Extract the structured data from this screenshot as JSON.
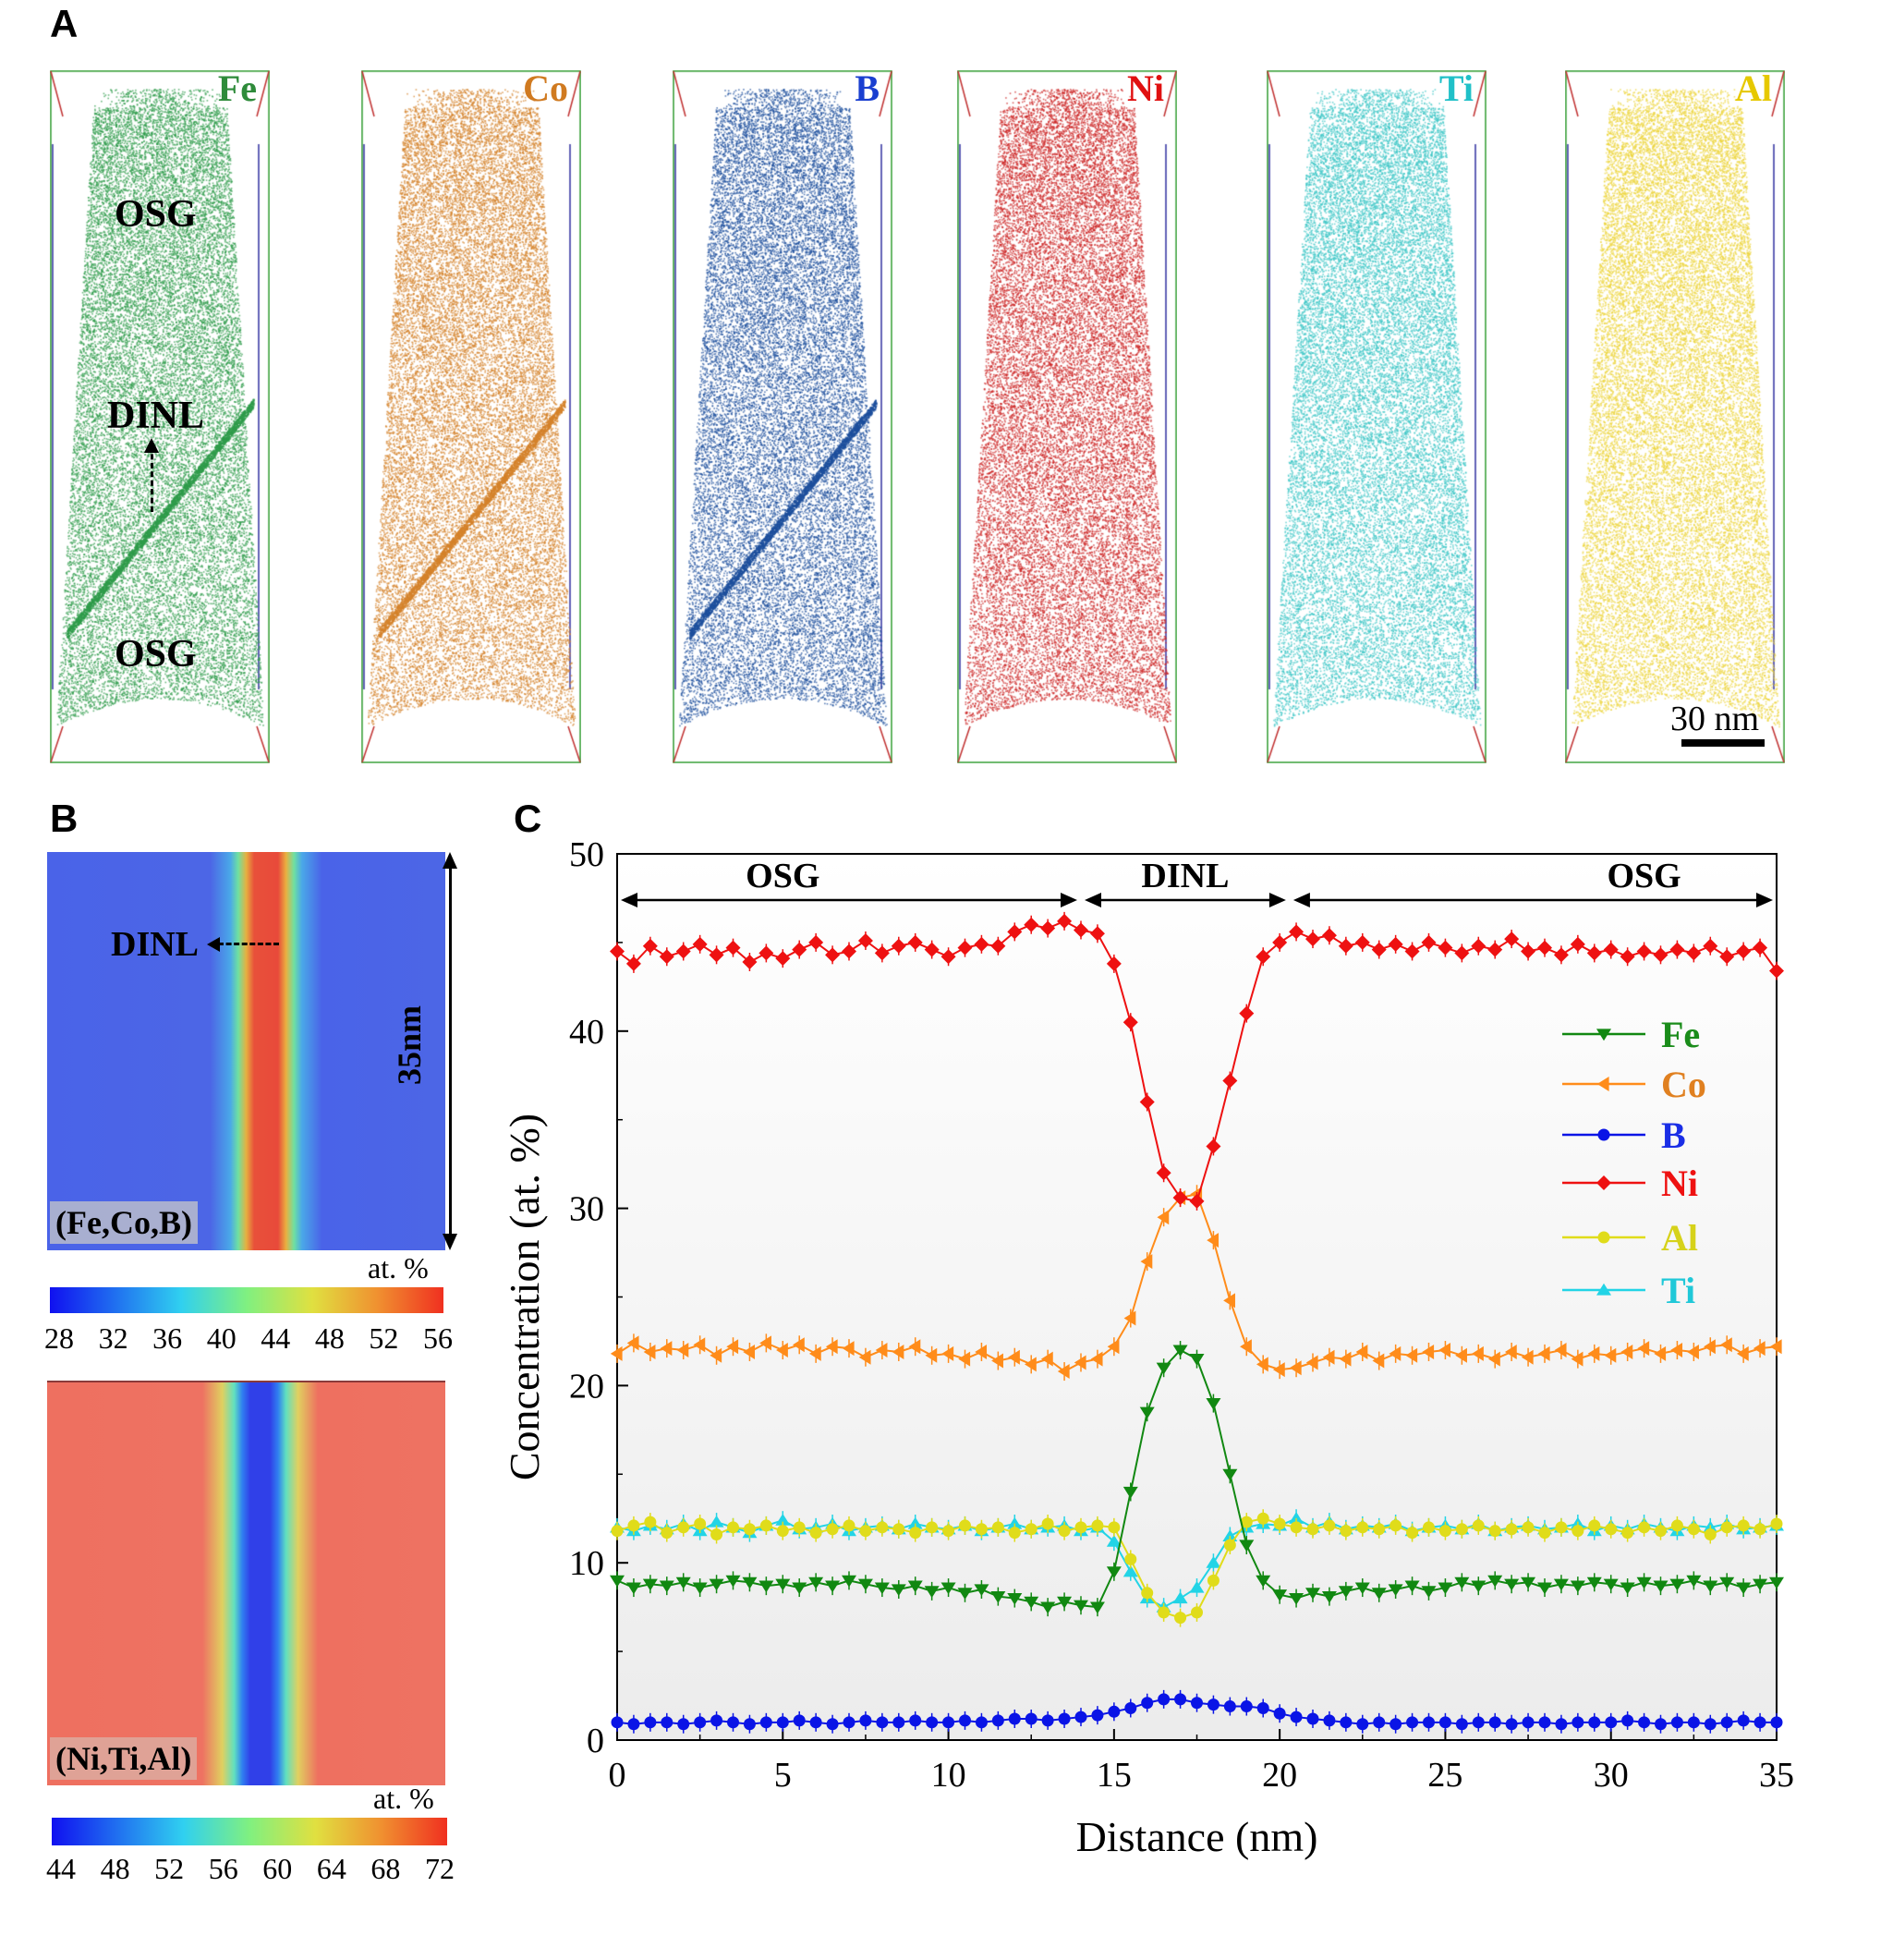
{
  "panels": {
    "a": "A",
    "b": "B",
    "c": "C"
  },
  "atom_maps": [
    {
      "element": "Fe",
      "color": "#2e9b4a",
      "label_color": "#2e8b3a",
      "interface": true
    },
    {
      "element": "Co",
      "color": "#d4822a",
      "label_color": "#d07a20",
      "interface": true
    },
    {
      "element": "B",
      "color": "#1d4f9c",
      "label_color": "#1a3fd0",
      "interface": true
    },
    {
      "element": "Ni",
      "color": "#cc2222",
      "label_color": "#e01010",
      "interface": false
    },
    {
      "element": "Ti",
      "color": "#3cc6c6",
      "label_color": "#20c0c8",
      "interface": false
    },
    {
      "element": "Al",
      "color": "#ecd43a",
      "label_color": "#e6c800",
      "interface": false
    }
  ],
  "annotations_a": {
    "osg_top": "OSG",
    "dinl": "DINL",
    "osg_bottom": "OSG",
    "scale_bar": "30 nm"
  },
  "panel_b": {
    "map1": {
      "label": "(Fe,Co,B)",
      "dinl": "DINL",
      "size": "35nm",
      "unit": "at. %",
      "ticks": [
        "28",
        "32",
        "36",
        "40",
        "44",
        "48",
        "52",
        "56"
      ]
    },
    "map2": {
      "label": "(Ni,Ti,Al)",
      "unit": "at. %",
      "ticks": [
        "44",
        "48",
        "52",
        "56",
        "60",
        "64",
        "68",
        "72"
      ]
    }
  },
  "chart_data": {
    "type": "line",
    "xlabel": "Distance (nm)",
    "ylabel": "Concentration (at. %)",
    "xlim": [
      0,
      35
    ],
    "ylim": [
      0,
      50
    ],
    "xticks": [
      "0",
      "5",
      "10",
      "15",
      "20",
      "25",
      "30",
      "35"
    ],
    "yticks": [
      "0",
      "10",
      "20",
      "30",
      "40",
      "50"
    ],
    "grid": false,
    "legend": "right",
    "regions": [
      {
        "label": "OSG",
        "from": 0,
        "to": 14
      },
      {
        "label": "DINL",
        "from": 14,
        "to": 20.3
      },
      {
        "label": "OSG",
        "from": 20.3,
        "to": 35
      }
    ],
    "x_step": 0.5,
    "series": [
      {
        "name": "Fe",
        "color": "#118811",
        "label_color": "#1a8c1a",
        "marker": "triangle-down",
        "values": [
          9.0,
          8.6,
          8.8,
          8.7,
          8.9,
          8.6,
          8.8,
          9.0,
          8.9,
          8.7,
          8.8,
          8.6,
          8.9,
          8.7,
          9.0,
          8.8,
          8.6,
          8.5,
          8.7,
          8.4,
          8.6,
          8.3,
          8.5,
          8.1,
          8.0,
          7.8,
          7.5,
          7.8,
          7.6,
          7.5,
          9.5,
          14.0,
          18.5,
          21.0,
          22.0,
          21.5,
          19.0,
          15.0,
          11.0,
          9.0,
          8.2,
          8.0,
          8.3,
          8.1,
          8.4,
          8.6,
          8.3,
          8.5,
          8.7,
          8.4,
          8.6,
          8.9,
          8.7,
          9.0,
          8.8,
          8.9,
          8.6,
          8.8,
          8.7,
          8.9,
          8.8,
          8.6,
          8.9,
          8.7,
          8.8,
          9.0,
          8.7,
          8.9,
          8.6,
          8.8,
          8.9
        ]
      },
      {
        "name": "Co",
        "color": "#ff8c1a",
        "label_color": "#e08020",
        "marker": "triangle-left",
        "values": [
          21.8,
          22.4,
          21.9,
          22.1,
          22.0,
          22.3,
          21.7,
          22.2,
          21.9,
          22.4,
          22.0,
          22.3,
          21.8,
          22.2,
          22.1,
          21.6,
          22.0,
          21.9,
          22.2,
          21.7,
          21.8,
          21.5,
          21.9,
          21.4,
          21.6,
          21.2,
          21.5,
          20.8,
          21.3,
          21.5,
          22.2,
          23.8,
          27.0,
          29.5,
          30.6,
          30.8,
          28.2,
          24.8,
          22.2,
          21.2,
          20.9,
          21.0,
          21.3,
          21.6,
          21.5,
          21.9,
          21.4,
          21.8,
          21.7,
          21.9,
          22.0,
          21.7,
          21.8,
          21.5,
          21.9,
          21.6,
          21.8,
          22.0,
          21.5,
          21.8,
          21.7,
          21.9,
          22.1,
          21.8,
          22.0,
          21.9,
          22.2,
          22.3,
          21.8,
          22.1,
          22.2
        ]
      },
      {
        "name": "B",
        "color": "#0a14e6",
        "label_color": "#1a2ee6",
        "marker": "circle",
        "values": [
          1.0,
          0.9,
          1.0,
          1.0,
          0.9,
          1.0,
          1.1,
          1.0,
          0.9,
          1.0,
          1.0,
          1.1,
          1.0,
          0.9,
          1.0,
          1.1,
          1.0,
          1.0,
          1.1,
          1.0,
          1.0,
          1.1,
          1.0,
          1.1,
          1.2,
          1.2,
          1.1,
          1.2,
          1.3,
          1.4,
          1.6,
          1.8,
          2.1,
          2.3,
          2.3,
          2.1,
          2.0,
          1.9,
          1.9,
          1.8,
          1.5,
          1.3,
          1.2,
          1.1,
          1.0,
          0.9,
          1.0,
          0.9,
          1.0,
          1.0,
          1.0,
          0.9,
          1.0,
          1.0,
          0.9,
          1.0,
          1.0,
          0.9,
          1.0,
          1.0,
          1.0,
          1.1,
          1.0,
          0.9,
          1.0,
          1.0,
          0.9,
          1.0,
          1.1,
          1.0,
          1.0
        ]
      },
      {
        "name": "Ni",
        "color": "#ee1111",
        "label_color": "#ee1111",
        "marker": "diamond",
        "values": [
          44.5,
          43.8,
          44.8,
          44.2,
          44.5,
          44.9,
          44.3,
          44.7,
          43.9,
          44.4,
          44.1,
          44.6,
          45.0,
          44.3,
          44.5,
          45.1,
          44.4,
          44.8,
          45.0,
          44.6,
          44.2,
          44.7,
          44.9,
          44.8,
          45.6,
          46.0,
          45.8,
          46.2,
          45.7,
          45.5,
          43.8,
          40.5,
          36.0,
          32.0,
          30.6,
          30.4,
          33.5,
          37.2,
          41.0,
          44.2,
          45.0,
          45.6,
          45.2,
          45.4,
          44.8,
          45.0,
          44.6,
          44.9,
          44.5,
          45.0,
          44.7,
          44.4,
          44.8,
          44.6,
          45.2,
          44.5,
          44.7,
          44.3,
          44.9,
          44.4,
          44.6,
          44.2,
          44.5,
          44.3,
          44.6,
          44.4,
          44.8,
          44.2,
          44.5,
          44.7,
          43.4
        ]
      },
      {
        "name": "Al",
        "color": "#e0dc1a",
        "label_color": "#d6d21a",
        "marker": "circle",
        "values": [
          11.8,
          12.1,
          12.3,
          11.7,
          12.0,
          12.2,
          11.6,
          12.0,
          11.9,
          12.1,
          11.8,
          12.0,
          11.7,
          11.9,
          12.1,
          11.8,
          12.0,
          11.9,
          11.7,
          12.0,
          11.8,
          12.1,
          11.9,
          12.0,
          11.7,
          11.9,
          12.2,
          11.8,
          12.0,
          12.1,
          12.0,
          10.2,
          8.3,
          7.2,
          6.9,
          7.2,
          9.0,
          11.0,
          12.3,
          12.5,
          12.2,
          12.0,
          11.9,
          12.1,
          11.8,
          12.0,
          11.9,
          12.1,
          11.7,
          12.0,
          11.8,
          11.9,
          12.1,
          11.8,
          11.9,
          12.0,
          11.7,
          12.0,
          11.8,
          12.1,
          11.9,
          11.7,
          12.0,
          11.8,
          12.1,
          11.9,
          11.6,
          12.0,
          12.1,
          11.9,
          12.2
        ]
      },
      {
        "name": "Ti",
        "color": "#22d4e6",
        "label_color": "#20c8d8",
        "marker": "triangle-up",
        "values": [
          12.0,
          11.8,
          12.1,
          11.9,
          12.2,
          11.8,
          12.3,
          12.0,
          11.7,
          12.1,
          12.4,
          11.9,
          12.0,
          12.2,
          11.8,
          12.0,
          12.1,
          11.9,
          12.2,
          12.0,
          11.9,
          12.1,
          11.8,
          12.0,
          12.2,
          11.9,
          12.0,
          12.1,
          11.8,
          12.0,
          11.2,
          9.5,
          8.0,
          7.5,
          8.0,
          8.6,
          10.0,
          11.5,
          12.0,
          12.2,
          12.1,
          12.5,
          12.0,
          12.3,
          11.9,
          12.1,
          12.0,
          12.2,
          11.8,
          12.0,
          12.1,
          11.9,
          12.2,
          11.8,
          12.0,
          12.1,
          11.9,
          12.0,
          12.2,
          11.8,
          12.1,
          11.9,
          12.2,
          12.0,
          11.8,
          12.1,
          12.0,
          12.2,
          11.9,
          12.0,
          12.1
        ]
      }
    ]
  }
}
